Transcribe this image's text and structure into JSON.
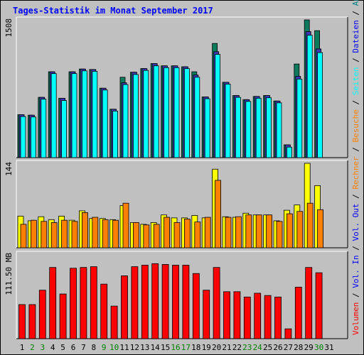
{
  "chart_data": {
    "type": "bar",
    "title": "Tages-Statistik im Monat September 2017",
    "x": [
      "1",
      "2",
      "3",
      "4",
      "5",
      "6",
      "7",
      "8",
      "9",
      "10",
      "11",
      "12",
      "13",
      "14",
      "15",
      "16",
      "17",
      "18",
      "19",
      "20",
      "21",
      "22",
      "23",
      "24",
      "25",
      "26",
      "27",
      "28",
      "29",
      "30",
      "31"
    ],
    "weekend_days": [
      "2",
      "3",
      "9",
      "10",
      "16",
      "17",
      "23",
      "24",
      "30"
    ],
    "colors": {
      "background": "#c0c0c0",
      "day_default": "#000000",
      "day_weekend": "#008000",
      "frame": "#ffffff",
      "title": "#0000ff"
    },
    "panels": [
      {
        "max_label": "1508",
        "max_value": 1508,
        "series": [
          {
            "name": "Anfragen",
            "color": "#0d7a5c",
            "values": [
              470,
              465,
              660,
              940,
              650,
              940,
              970,
              965,
              760,
              530,
              880,
              935,
              975,
              1030,
              1005,
              1005,
              995,
              940,
              665,
              1250,
              825,
              680,
              635,
              670,
              680,
              620,
              140,
              1025,
              1508,
              1390,
              null
            ]
          },
          {
            "name": "Dateien",
            "color": "#3a3ab0",
            "values": [
              470,
              465,
              660,
              940,
              650,
              940,
              970,
              965,
              760,
              530,
              820,
              935,
              975,
              1030,
              1005,
              1005,
              995,
              905,
              665,
              1160,
              825,
              680,
              635,
              670,
              680,
              620,
              140,
              890,
              1380,
              1190,
              null
            ]
          },
          {
            "name": "Seiten",
            "color": "#00ffff",
            "values": [
              450,
              445,
              640,
              920,
              625,
              920,
              950,
              945,
              740,
              510,
              800,
              910,
              955,
              1005,
              985,
              985,
              975,
              880,
              645,
              1130,
              805,
              660,
              615,
              650,
              655,
              600,
              115,
              860,
              1340,
              1150,
              null
            ]
          }
        ]
      },
      {
        "max_label": "144",
        "max_value": 144,
        "series": [
          {
            "name": "Besuche",
            "color": "#ffff00",
            "values": [
              54,
              46,
              53,
              48,
              54,
              47,
              63,
              50,
              50,
              48,
              72,
              43,
              40,
              43,
              56,
              51,
              51,
              55,
              51,
              134,
              53,
              52,
              59,
              56,
              56,
              46,
              64,
              73,
              144,
              106,
              null
            ]
          },
          {
            "name": "Rechner",
            "color": "#ff8000",
            "values": [
              40,
              47,
              45,
              43,
              47,
              45,
              60,
              52,
              48,
              47,
              76,
              43,
              39,
              40,
              52,
              43,
              49,
              44,
              52,
              115,
              52,
              53,
              56,
              56,
              56,
              45,
              58,
              62,
              76,
              65,
              null
            ]
          }
        ]
      },
      {
        "max_label": "111.50 MB",
        "max_value": 111.5,
        "series": [
          {
            "name": "Volumen",
            "color": "#ff0000",
            "values": [
              45,
              45,
              64,
              94,
              59,
              93,
              94,
              95,
              72,
              43,
              83,
              95,
              97,
              99,
              98,
              97,
              97,
              86,
              64,
              94,
              62,
              62,
              55,
              60,
              57,
              55,
              13,
              68,
              94,
              87,
              null
            ]
          }
        ]
      }
    ],
    "legend": {
      "placement": "right",
      "items": [
        {
          "text": "Volumen",
          "color": "#ff0000"
        },
        {
          "text": " / ",
          "color": "#000000"
        },
        {
          "text": "Vol. In",
          "color": "#0000ff"
        },
        {
          "text": " / ",
          "color": "#000000"
        },
        {
          "text": "Vol. Out",
          "color": "#0000ff"
        },
        {
          "text": " / ",
          "color": "#000000"
        },
        {
          "text": "Rechner",
          "color": "#ff8000"
        },
        {
          "text": " / ",
          "color": "#000000"
        },
        {
          "text": "Besuche",
          "color": "#ff8000"
        },
        {
          "text": " / ",
          "color": "#000000"
        },
        {
          "text": "Seiten",
          "color": "#00ffff"
        },
        {
          "text": " / ",
          "color": "#000000"
        },
        {
          "text": "Dateien",
          "color": "#0000ff"
        },
        {
          "text": " / ",
          "color": "#000000"
        },
        {
          "text": "Anfragen",
          "color": "#008080"
        }
      ]
    }
  }
}
